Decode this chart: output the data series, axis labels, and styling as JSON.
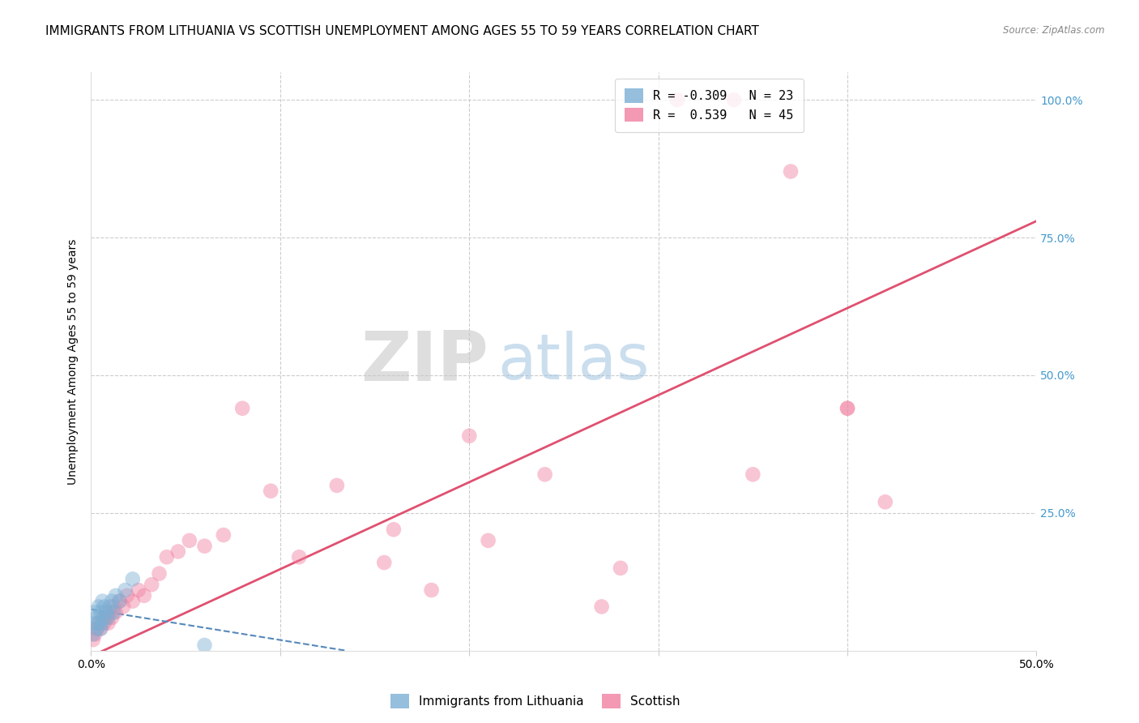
{
  "title": "IMMIGRANTS FROM LITHUANIA VS SCOTTISH UNEMPLOYMENT AMONG AGES 55 TO 59 YEARS CORRELATION CHART",
  "source": "Source: ZipAtlas.com",
  "ylabel": "Unemployment Among Ages 55 to 59 years",
  "xlim": [
    0,
    0.5
  ],
  "ylim": [
    0,
    1.05
  ],
  "blue_scatter_x": [
    0.001,
    0.002,
    0.002,
    0.003,
    0.003,
    0.004,
    0.004,
    0.005,
    0.005,
    0.006,
    0.006,
    0.007,
    0.007,
    0.008,
    0.009,
    0.01,
    0.011,
    0.012,
    0.013,
    0.015,
    0.018,
    0.022,
    0.06
  ],
  "blue_scatter_y": [
    0.03,
    0.05,
    0.07,
    0.04,
    0.06,
    0.05,
    0.08,
    0.04,
    0.07,
    0.05,
    0.09,
    0.06,
    0.08,
    0.07,
    0.06,
    0.08,
    0.09,
    0.07,
    0.1,
    0.09,
    0.11,
    0.13,
    0.01
  ],
  "pink_scatter_x": [
    0.001,
    0.002,
    0.003,
    0.004,
    0.005,
    0.006,
    0.007,
    0.008,
    0.009,
    0.01,
    0.011,
    0.012,
    0.013,
    0.015,
    0.017,
    0.019,
    0.022,
    0.025,
    0.028,
    0.032,
    0.036,
    0.04,
    0.046,
    0.052,
    0.06,
    0.07,
    0.08,
    0.095,
    0.11,
    0.13,
    0.155,
    0.18,
    0.21,
    0.24,
    0.28,
    0.31,
    0.34,
    0.37,
    0.4,
    0.42,
    0.16,
    0.2,
    0.27,
    0.35,
    0.4
  ],
  "pink_scatter_y": [
    0.02,
    0.03,
    0.04,
    0.05,
    0.04,
    0.06,
    0.05,
    0.06,
    0.05,
    0.07,
    0.06,
    0.08,
    0.07,
    0.09,
    0.08,
    0.1,
    0.09,
    0.11,
    0.1,
    0.12,
    0.14,
    0.17,
    0.18,
    0.2,
    0.19,
    0.21,
    0.44,
    0.29,
    0.17,
    0.3,
    0.16,
    0.11,
    0.2,
    0.32,
    0.15,
    1.0,
    1.0,
    0.87,
    0.44,
    0.27,
    0.22,
    0.39,
    0.08,
    0.32,
    0.44
  ],
  "blue_line_x": [
    0.0,
    0.135
  ],
  "blue_line_y": [
    0.075,
    0.0
  ],
  "pink_line_x": [
    0.0,
    0.5
  ],
  "pink_line_y": [
    -0.01,
    0.78
  ],
  "watermark_zip": "ZIP",
  "watermark_atlas": "atlas",
  "background_color": "#ffffff",
  "grid_color": "#cccccc",
  "scatter_size": 180,
  "scatter_alpha": 0.45,
  "blue_color": "#7bafd4",
  "pink_color": "#f080a0",
  "blue_line_color": "#5588bb",
  "pink_line_color": "#e05070",
  "title_fontsize": 11,
  "axis_label_fontsize": 10,
  "tick_fontsize": 10,
  "right_tick_color": "#4499cc",
  "legend_blue_r": "R = -0.309",
  "legend_blue_n": "N = 23",
  "legend_pink_r": "R =  0.539",
  "legend_pink_n": "N = 45"
}
